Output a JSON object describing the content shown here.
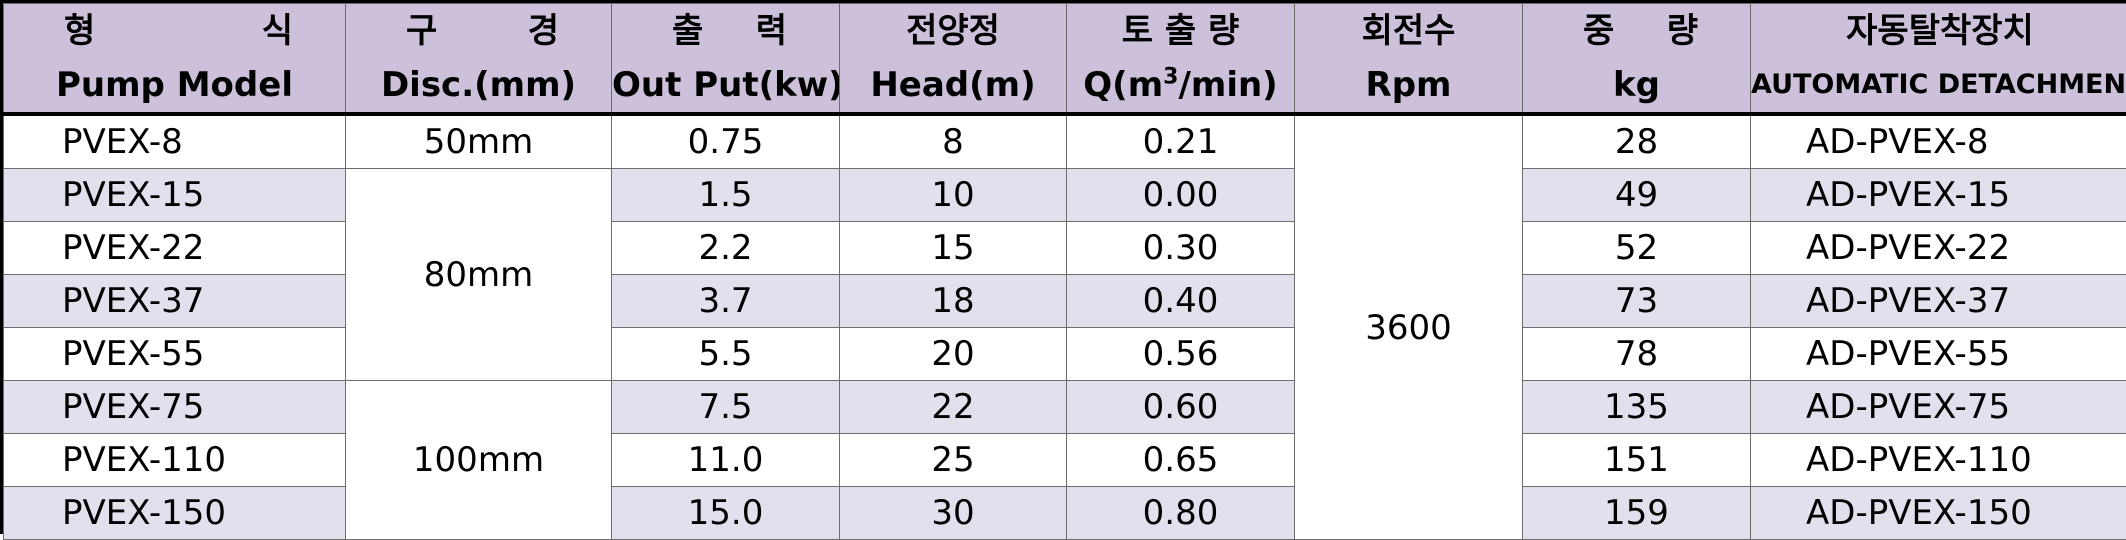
{
  "headers": [
    {
      "kor": "형 식",
      "eng": "Pump Model"
    },
    {
      "kor": "구 경",
      "eng": "Disc.(mm)"
    },
    {
      "kor": "출 력",
      "eng": "Out Put(kw)"
    },
    {
      "kor": "전양정",
      "eng": "Head(m)"
    },
    {
      "kor": "토 출 량",
      "eng_pre": "Q(m",
      "eng_sup": "3",
      "eng_post": "/min)"
    },
    {
      "kor": "회전수",
      "eng": "Rpm"
    },
    {
      "kor": "중 량",
      "eng": "kg"
    },
    {
      "kor": "자동탈착장치",
      "eng": "AUTOMATIC DETACHMENT"
    }
  ],
  "bore_groups": [
    "50mm",
    "80mm",
    "100mm"
  ],
  "rpm": "3600",
  "rows": [
    {
      "model": "PVEX-8",
      "output": "0.75",
      "head": "8",
      "flow": "0.21",
      "weight": "28",
      "detach": "AD-PVEX-8"
    },
    {
      "model": "PVEX-15",
      "output": "1.5",
      "head": "10",
      "flow": "0.00",
      "weight": "49",
      "detach": "AD-PVEX-15"
    },
    {
      "model": "PVEX-22",
      "output": "2.2",
      "head": "15",
      "flow": "0.30",
      "weight": "52",
      "detach": "AD-PVEX-22"
    },
    {
      "model": "PVEX-37",
      "output": "3.7",
      "head": "18",
      "flow": "0.40",
      "weight": "73",
      "detach": "AD-PVEX-37"
    },
    {
      "model": "PVEX-55",
      "output": "5.5",
      "head": "20",
      "flow": "0.56",
      "weight": "78",
      "detach": "AD-PVEX-55"
    },
    {
      "model": "PVEX-75",
      "output": "7.5",
      "head": "22",
      "flow": "0.60",
      "weight": "135",
      "detach": "AD-PVEX-75"
    },
    {
      "model": "PVEX-110",
      "output": "11.0",
      "head": "25",
      "flow": "0.65",
      "weight": "151",
      "detach": "AD-PVEX-110"
    },
    {
      "model": "PVEX-150",
      "output": "15.0",
      "head": "30",
      "flow": "0.80",
      "weight": "159",
      "detach": "AD-PVEX-150"
    }
  ],
  "colors": {
    "header_bg": "#ccc0da",
    "alt_row_bg": "#e4dfec",
    "row_bg": "#ffffff"
  }
}
